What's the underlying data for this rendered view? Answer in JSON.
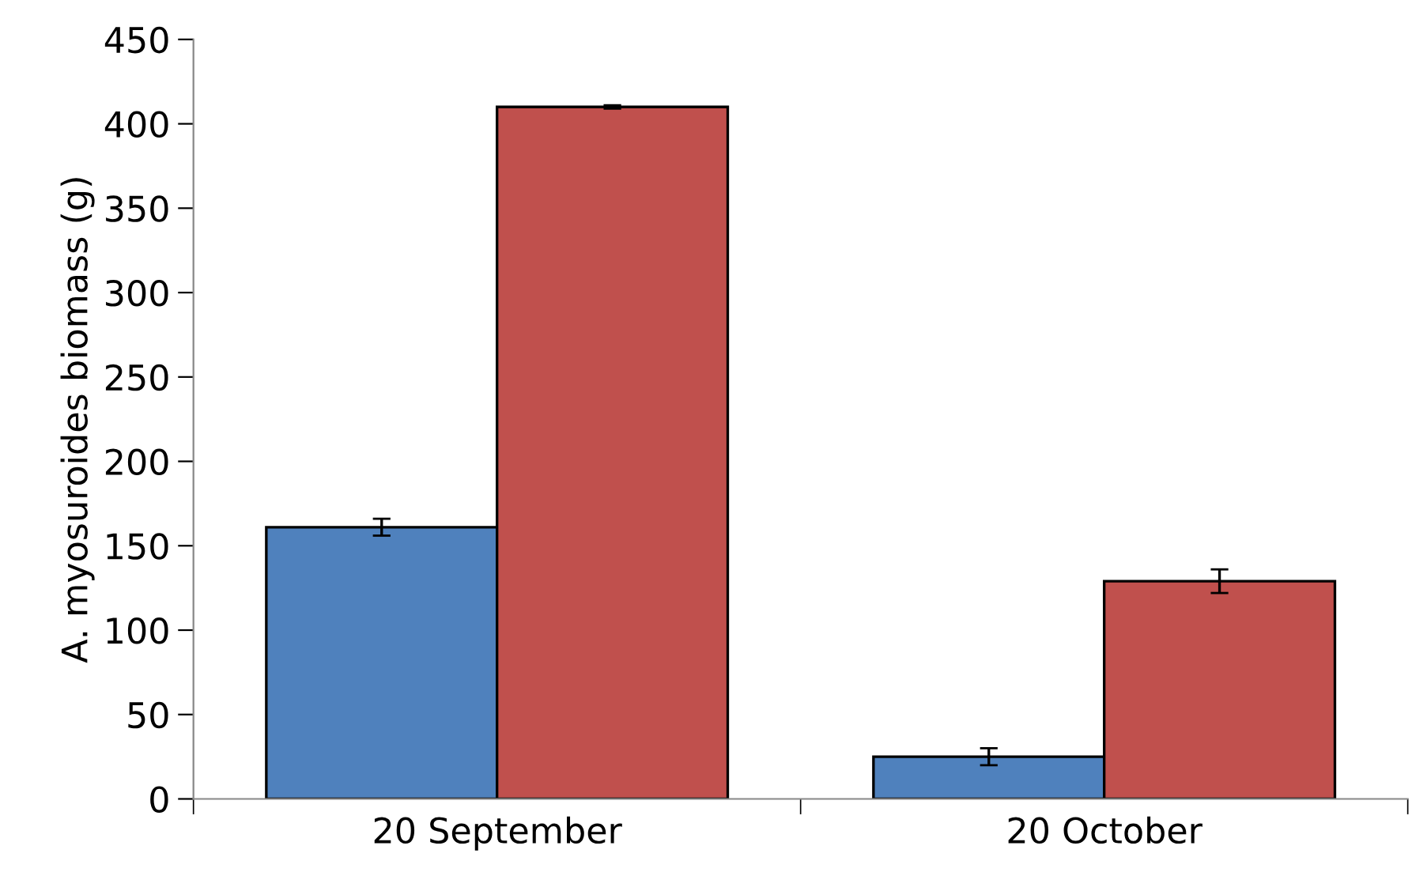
{
  "chart_data": {
    "type": "bar",
    "ylabel": "A. myosuroides biomass (g)",
    "categories": [
      "20 September",
      "20 October"
    ],
    "series": [
      {
        "color": "#4f81bd",
        "values": [
          161,
          25
        ],
        "errors": [
          5,
          5
        ]
      },
      {
        "color": "#c0504d",
        "values": [
          410,
          129
        ],
        "errors": [
          1,
          7
        ]
      }
    ],
    "ylim": [
      0,
      450
    ],
    "yticks": [
      0,
      50,
      100,
      150,
      200,
      250,
      300,
      350,
      400,
      450
    ],
    "grid": false,
    "legend": false
  }
}
